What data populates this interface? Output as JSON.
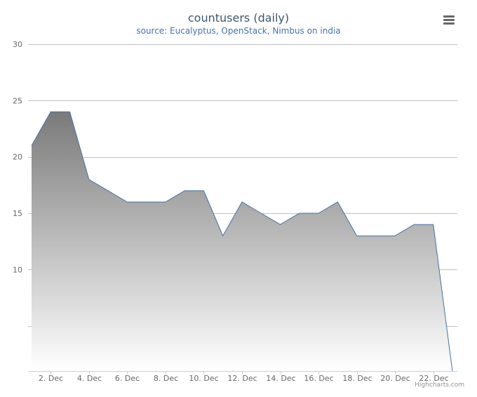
{
  "chart_data": {
    "type": "area",
    "title": "countusers (daily)",
    "subtitle": "source: Eucalyptus, OpenStack, Nimbus on india",
    "xlabel": "",
    "ylabel": "",
    "x_tick_labels": [
      "2. Dec",
      "4. Dec",
      "6. Dec",
      "8. Dec",
      "10. Dec",
      "12. Dec",
      "14. Dec",
      "16. Dec",
      "18. Dec",
      "20. Dec",
      "22. Dec"
    ],
    "y_tick_labels": [
      "10",
      "15",
      "20",
      "25",
      "30"
    ],
    "ylim": [
      1,
      30
    ],
    "x_days": [
      1,
      2,
      3,
      4,
      5,
      6,
      7,
      8,
      9,
      10,
      11,
      12,
      13,
      14,
      15,
      16,
      17,
      18,
      19,
      20,
      21,
      22,
      23
    ],
    "values": [
      21,
      24,
      24,
      18,
      17,
      16,
      16,
      16,
      17,
      17,
      13,
      16,
      15,
      14,
      15,
      15,
      16,
      13,
      13,
      13,
      14,
      14,
      1
    ],
    "grid": true,
    "colors": {
      "line": "#4572a7",
      "area_top": "#7a7a7a",
      "area_bottom": "#ffffff",
      "grid": "#c0c0c0"
    }
  },
  "menu": {
    "icon": "menu-icon"
  },
  "credits": "Highcharts.com"
}
